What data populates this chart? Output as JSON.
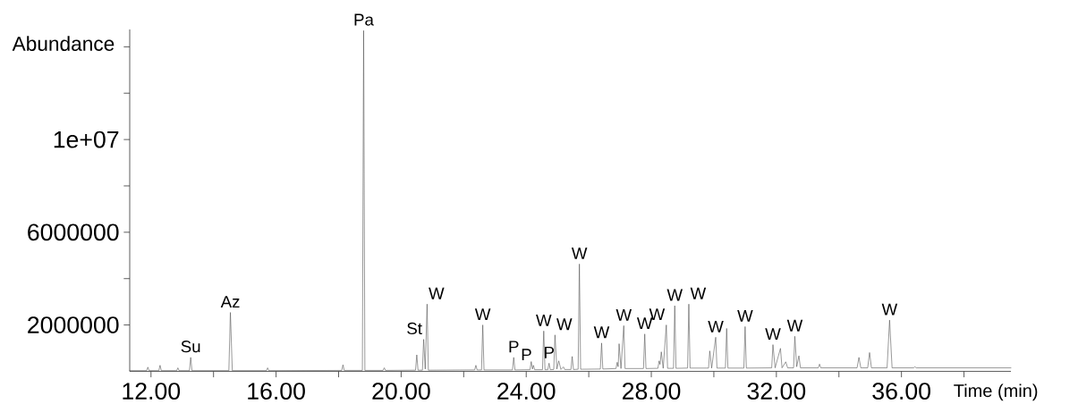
{
  "chart_data": {
    "type": "line",
    "color": "#555555",
    "xlabel": "Time (min)",
    "ylabel": "Abundance",
    "xlim": [
      11.32,
      39.5
    ],
    "ylim": [
      0,
      14750000
    ],
    "xticks": [
      {
        "value": 12,
        "label": "12.00"
      },
      {
        "value": 14,
        "label": null
      },
      {
        "value": 16,
        "label": "16.00"
      },
      {
        "value": 18,
        "label": null
      },
      {
        "value": 20,
        "label": "20.00"
      },
      {
        "value": 22,
        "label": null
      },
      {
        "value": 24,
        "label": "24.00"
      },
      {
        "value": 26,
        "label": null
      },
      {
        "value": 28,
        "label": "28.00"
      },
      {
        "value": 30,
        "label": null
      },
      {
        "value": 32,
        "label": "32.00"
      },
      {
        "value": 34,
        "label": null
      },
      {
        "value": 36,
        "label": "36.00"
      },
      {
        "value": 38,
        "label": null
      }
    ],
    "yticks": [
      2000000,
      {
        "value": 4000000,
        "label": null
      },
      6000000,
      {
        "value": 8000000,
        "label": null
      },
      {
        "value": 10000000,
        "label": "1e+07"
      },
      {
        "value": 12000000,
        "label": null
      },
      {
        "value": 14000000,
        "label": null
      }
    ],
    "x": [
      11.32,
      11.86,
      11.9,
      11.94,
      12.25,
      12.29,
      12.33,
      12.82,
      12.86,
      12.9,
      13.23,
      13.27,
      13.31,
      14.49,
      14.54,
      14.6,
      15.69,
      15.73,
      15.77,
      18.1,
      18.14,
      18.18,
      18.76,
      18.8,
      18.84,
      19.42,
      19.46,
      19.5,
      20.46,
      20.5,
      20.54,
      20.68,
      20.72,
      20.77,
      20.83,
      20.87,
      22.35,
      22.39,
      22.43,
      22.57,
      22.61,
      22.65,
      23.56,
      23.6,
      23.64,
      24.12,
      24.16,
      24.2,
      24.23,
      24.27,
      24.52,
      24.56,
      24.6,
      24.69,
      24.73,
      24.77,
      24.88,
      24.92,
      24.98,
      25.04,
      25.11,
      25.19,
      25.23,
      25.43,
      25.47,
      25.51,
      25.66,
      25.7,
      25.74,
      26.37,
      26.41,
      26.45,
      26.87,
      26.91,
      26.94,
      26.97,
      27.03,
      27.12,
      27.16,
      27.75,
      27.79,
      27.83,
      28.21,
      28.25,
      28.28,
      28.32,
      28.38,
      28.48,
      28.52,
      28.71,
      28.75,
      28.79,
      29.16,
      29.2,
      29.24,
      29.83,
      29.87,
      29.93,
      30.06,
      30.1,
      30.37,
      30.41,
      30.45,
      30.96,
      31.0,
      31.04,
      31.85,
      31.89,
      31.96,
      32.13,
      32.18,
      32.3,
      32.36,
      32.55,
      32.59,
      32.65,
      32.72,
      32.77,
      33.34,
      33.38,
      33.42,
      34.58,
      34.64,
      34.7,
      34.92,
      34.98,
      35.04,
      35.54,
      35.62,
      35.7,
      36.39,
      36.43,
      36.47,
      39.5
    ],
    "values": [
      30000,
      30000,
      180000,
      30000,
      30000,
      260000,
      30000,
      30000,
      150000,
      30000,
      30000,
      600000,
      30000,
      30000,
      2540000,
      30000,
      30000,
      150000,
      30000,
      40000,
      280000,
      40000,
      40000,
      14700000,
      40000,
      40000,
      150000,
      40000,
      50000,
      710000,
      50000,
      50000,
      1380000,
      100000,
      2900000,
      50000,
      60000,
      260000,
      60000,
      60000,
      2000000,
      60000,
      60000,
      600000,
      60000,
      70000,
      420000,
      100000,
      260000,
      70000,
      70000,
      1740000,
      70000,
      70000,
      350000,
      70000,
      80000,
      1570000,
      100000,
      450000,
      80000,
      190000,
      80000,
      80000,
      640000,
      80000,
      90000,
      4630000,
      90000,
      100000,
      1220000,
      100000,
      120000,
      390000,
      200000,
      1190000,
      120000,
      1970000,
      120000,
      120000,
      1610000,
      120000,
      130000,
      450000,
      300000,
      840000,
      130000,
      2000000,
      130000,
      130000,
      2830000,
      130000,
      140000,
      2900000,
      140000,
      140000,
      880000,
      140000,
      1470000,
      140000,
      140000,
      1850000,
      140000,
      140000,
      1930000,
      140000,
      150000,
      1150000,
      150000,
      990000,
      150000,
      410000,
      150000,
      150000,
      1510000,
      200000,
      670000,
      150000,
      150000,
      310000,
      150000,
      150000,
      600000,
      150000,
      150000,
      810000,
      150000,
      150000,
      2210000,
      150000,
      150000,
      200000,
      150000,
      150000
    ],
    "annotations": [
      {
        "text": "Su",
        "x": 13.27,
        "y": 600000
      },
      {
        "text": "Az",
        "x": 14.54,
        "y": 2540000
      },
      {
        "text": "Pa",
        "x": 18.8,
        "y": 14700000
      },
      {
        "text": "St",
        "x": 20.72,
        "y": 1380000
      },
      {
        "text": "W",
        "x": 20.83,
        "y": 2900000
      },
      {
        "text": "W",
        "x": 22.61,
        "y": 2000000
      },
      {
        "text": "P",
        "x": 23.6,
        "y": 600000
      },
      {
        "text": "P",
        "x": 24.23,
        "y": 260000
      },
      {
        "text": "W",
        "x": 24.56,
        "y": 1740000
      },
      {
        "text": "P",
        "x": 24.73,
        "y": 350000
      },
      {
        "text": "W",
        "x": 24.92,
        "y": 1570000
      },
      {
        "text": "W",
        "x": 25.7,
        "y": 4630000
      },
      {
        "text": "W",
        "x": 26.41,
        "y": 1220000
      },
      {
        "text": "W",
        "x": 27.12,
        "y": 1970000
      },
      {
        "text": "W",
        "x": 27.79,
        "y": 1610000
      },
      {
        "text": "W",
        "x": 28.48,
        "y": 2000000
      },
      {
        "text": "W",
        "x": 28.75,
        "y": 2830000
      },
      {
        "text": "W",
        "x": 29.2,
        "y": 2900000
      },
      {
        "text": "W",
        "x": 30.06,
        "y": 1470000
      },
      {
        "text": "W",
        "x": 31.0,
        "y": 1930000
      },
      {
        "text": "W",
        "x": 31.89,
        "y": 1150000
      },
      {
        "text": "W",
        "x": 32.59,
        "y": 1510000
      },
      {
        "text": "W",
        "x": 35.62,
        "y": 2210000
      }
    ]
  }
}
